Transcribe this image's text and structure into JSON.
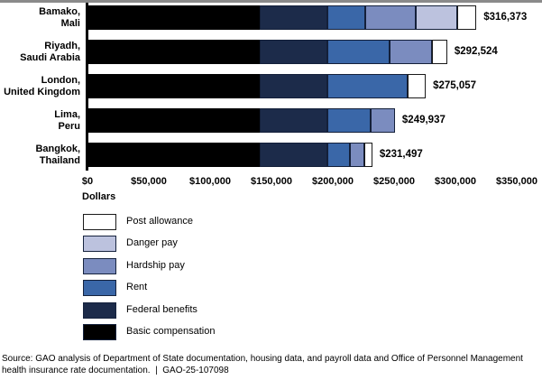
{
  "chart_data": {
    "type": "bar",
    "orientation": "horizontal",
    "stacked": true,
    "title": "",
    "xlabel": "Dollars",
    "xlim": [
      0,
      350000
    ],
    "grid": false,
    "legend_position": "bottom-left",
    "x_ticks": [
      {
        "value": 0,
        "label": "$0"
      },
      {
        "value": 50000,
        "label": "$50,000"
      },
      {
        "value": 100000,
        "label": "$100,000"
      },
      {
        "value": 150000,
        "label": "$150,000"
      },
      {
        "value": 200000,
        "label": "$200,000"
      },
      {
        "value": 250000,
        "label": "$250,000"
      },
      {
        "value": 300000,
        "label": "$300,000"
      },
      {
        "value": 350000,
        "label": "$350,000"
      }
    ],
    "series_keys": [
      "basic",
      "federal",
      "rent",
      "hardship",
      "danger",
      "post"
    ],
    "series_names": {
      "basic": "Basic compensation",
      "federal": "Federal benefits",
      "rent": "Rent",
      "hardship": "Hardship pay",
      "danger": "Danger pay",
      "post": "Post allowance"
    },
    "colors": {
      "basic": "#000000",
      "federal": "#1c2b4a",
      "rent": "#3a67a8",
      "hardship": "#7b8cbf",
      "danger": "#bcc2de",
      "post": "#ffffff"
    },
    "categories": [
      "Bamako, Mali",
      "Riyadh, Saudi Arabia",
      "London, United Kingdom",
      "Lima, Peru",
      "Bangkok, Thailand"
    ],
    "rows": [
      {
        "label_lines": [
          "Bamako,",
          "Mali"
        ],
        "total": 316373,
        "total_label": "$316,373",
        "segments": {
          "basic": 140000,
          "federal": 55000,
          "rent": 31000,
          "hardship": 41000,
          "danger": 34000,
          "post": 15373
        }
      },
      {
        "label_lines": [
          "Riyadh,",
          "Saudi Arabia"
        ],
        "total": 292524,
        "total_label": "$292,524",
        "segments": {
          "basic": 140000,
          "federal": 55000,
          "rent": 50500,
          "hardship": 34500,
          "danger": 0,
          "post": 12524
        }
      },
      {
        "label_lines": [
          "London,",
          "United Kingdom"
        ],
        "total": 275057,
        "total_label": "$275,057",
        "segments": {
          "basic": 140000,
          "federal": 55000,
          "rent": 65000,
          "hardship": 0,
          "danger": 0,
          "post": 15057
        }
      },
      {
        "label_lines": [
          "Lima,",
          "Peru"
        ],
        "total": 249937,
        "total_label": "$249,937",
        "segments": {
          "basic": 140000,
          "federal": 55000,
          "rent": 35000,
          "hardship": 19937,
          "danger": 0,
          "post": 0
        }
      },
      {
        "label_lines": [
          "Bangkok,",
          "Thailand"
        ],
        "total": 231497,
        "total_label": "$231,497",
        "segments": {
          "basic": 140000,
          "federal": 55000,
          "rent": 18000,
          "hardship": 12000,
          "danger": 0,
          "post": 6497
        }
      }
    ]
  },
  "legend": {
    "items": [
      {
        "key": "post",
        "label": "Post allowance"
      },
      {
        "key": "danger",
        "label": "Danger pay"
      },
      {
        "key": "hardship",
        "label": "Hardship pay"
      },
      {
        "key": "rent",
        "label": "Rent"
      },
      {
        "key": "federal",
        "label": "Federal benefits"
      },
      {
        "key": "basic",
        "label": "Basic compensation"
      }
    ]
  },
  "source": {
    "line1": "Source: GAO analysis of Department of State documentation, housing data, and payroll data and Office of Personnel Management",
    "line2": "health insurance rate documentation.  |  GAO-25-107098"
  }
}
